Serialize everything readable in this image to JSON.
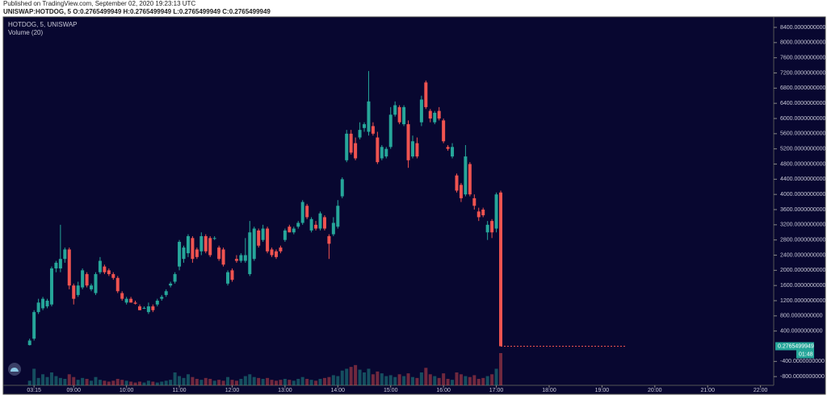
{
  "header": {
    "published": "Published on TradingView.com, September 02, 2020 19:23:13 UTC",
    "symbol_line": "UNISWAP:HOTDOG, 5  O:0.2765499949 H:0.2765499949 L:0.2765499949 C:0.2765499949"
  },
  "chart_data": {
    "type": "candlestick",
    "title": "HOTDOG, 5, UNISWAP",
    "volume_label": "Volume (20)",
    "up_color": "#26a69a",
    "down_color": "#ef5350",
    "open": [
      30,
      200,
      900,
      1000,
      1050,
      1100,
      2050,
      2050,
      2300,
      2550,
      1600,
      1350,
      1550,
      1900,
      1500,
      1400,
      1950,
      2100,
      2000,
      1900,
      1800,
      1400,
      1150,
      1250,
      1150,
      1050,
      1000,
      900,
      1050,
      1100,
      1250,
      1350,
      1600,
      1700,
      2100,
      2300,
      2450,
      2850,
      2550,
      2500,
      2900,
      2850,
      2850,
      2600,
      2550,
      1650,
      2000,
      2300,
      2250,
      2250,
      1900,
      2300,
      3050,
      2800,
      3100,
      2550,
      2500,
      2600,
      2800,
      3150,
      3000,
      3150,
      3250,
      3700,
      3050,
      3200,
      3100,
      3400,
      2900,
      2950,
      3150,
      3950,
      4900,
      5600,
      5350,
      5500,
      5750,
      5650,
      5800,
      5500,
      4950,
      5000,
      5250,
      6100,
      6300,
      5850,
      5850,
      5000,
      5350,
      5900,
      6950,
      6200,
      5900,
      6200,
      5950,
      5250,
      5000,
      4500,
      4250,
      4000,
      4800,
      3900,
      3550,
      3600,
      3000,
      3300,
      3100,
      4050
    ],
    "high": [
      200,
      950,
      1250,
      1300,
      1250,
      2100,
      2250,
      3200,
      2600,
      2600,
      1650,
      1700,
      2050,
      1950,
      1650,
      1950,
      2350,
      2150,
      2050,
      1950,
      1850,
      1450,
      1300,
      1300,
      1200,
      1100,
      1050,
      1150,
      1100,
      1250,
      1350,
      1500,
      1700,
      1950,
      2800,
      2650,
      2950,
      2900,
      2600,
      3000,
      2950,
      2900,
      2900,
      2650,
      2600,
      2000,
      2050,
      2400,
      2450,
      2850,
      3300,
      3150,
      3100,
      3200,
      3150,
      2600,
      2550,
      2650,
      3100,
      3200,
      3150,
      3300,
      3850,
      3750,
      3400,
      3300,
      3550,
      3450,
      2950,
      3400,
      3850,
      4450,
      5700,
      5700,
      5500,
      5900,
      5900,
      7250,
      5900,
      5650,
      5300,
      5250,
      6300,
      6450,
      6350,
      6350,
      5950,
      5550,
      5500,
      6600,
      7000,
      6250,
      6200,
      6300,
      6000,
      5300,
      5350,
      4550,
      4300,
      5300,
      4850,
      4000,
      3650,
      3650,
      3300,
      3350,
      4050,
      4100
    ],
    "low": [
      20,
      150,
      850,
      950,
      1000,
      1050,
      1950,
      1950,
      2200,
      1500,
      1100,
      1300,
      1500,
      1550,
      1450,
      1350,
      1900,
      1900,
      1850,
      1750,
      1400,
      1200,
      1100,
      1150,
      1100,
      950,
      980,
      850,
      900,
      1050,
      1200,
      1300,
      1550,
      1650,
      2000,
      2200,
      2350,
      2200,
      2300,
      2400,
      2450,
      2350,
      2800,
      2250,
      2100,
      1600,
      1700,
      2200,
      2200,
      2200,
      1850,
      2250,
      2600,
      2750,
      2450,
      2350,
      2300,
      2450,
      2750,
      3000,
      2950,
      3100,
      3200,
      3350,
      3000,
      3050,
      3050,
      3050,
      2300,
      2900,
      3100,
      3900,
      4850,
      5050,
      4900,
      5450,
      5650,
      5550,
      5550,
      4800,
      4900,
      4950,
      5200,
      6050,
      5850,
      5800,
      4700,
      4950,
      4950,
      5800,
      6250,
      5900,
      5850,
      5950,
      5350,
      5150,
      4950,
      4050,
      3800,
      3950,
      3950,
      3600,
      3300,
      3400,
      2800,
      2850,
      3000,
      0.2765499949
    ],
    "close": [
      150,
      900,
      1150,
      1250,
      1200,
      2050,
      2200,
      2300,
      2550,
      1600,
      1250,
      1600,
      2000,
      1600,
      1600,
      1900,
      2250,
      1950,
      1900,
      1800,
      1450,
      1250,
      1250,
      1150,
      1120,
      950,
      1010,
      1050,
      950,
      1200,
      1300,
      1450,
      1650,
      1900,
      2750,
      2600,
      2900,
      2300,
      2350,
      2900,
      2500,
      2400,
      2850,
      2300,
      2150,
      1950,
      1750,
      2250,
      2400,
      2400,
      3000,
      3100,
      2650,
      3100,
      2500,
      2400,
      2350,
      2500,
      3050,
      3000,
      3100,
      3250,
      3800,
      3400,
      3350,
      3100,
      3500,
      3100,
      2700,
      3250,
      3700,
      4400,
      5600,
      5100,
      4950,
      5700,
      5850,
      6450,
      5600,
      4850,
      5250,
      5200,
      6100,
      6350,
      5900,
      6300,
      4900,
      5400,
      5000,
      6500,
      6300,
      6000,
      6150,
      6000,
      5400,
      5200,
      5250,
      4100,
      3900,
      5000,
      4000,
      3700,
      3400,
      3450,
      3200,
      3000,
      4000,
      0.2765499949
    ],
    "volume": [
      5,
      18,
      8,
      12,
      9,
      14,
      10,
      8,
      7,
      12,
      9,
      6,
      8,
      7,
      5,
      9,
      6,
      5,
      4,
      5,
      7,
      6,
      5,
      4,
      3,
      4,
      3,
      5,
      4,
      3,
      4,
      5,
      6,
      14,
      10,
      8,
      12,
      9,
      7,
      6,
      8,
      7,
      5,
      6,
      5,
      9,
      6,
      5,
      7,
      10,
      12,
      9,
      8,
      7,
      8,
      6,
      5,
      6,
      7,
      6,
      5,
      7,
      9,
      7,
      6,
      5,
      7,
      8,
      9,
      11,
      10,
      16,
      18,
      20,
      22,
      17,
      14,
      18,
      12,
      15,
      13,
      10,
      11,
      9,
      12,
      10,
      13,
      9,
      8,
      14,
      19,
      12,
      10,
      8,
      13,
      7,
      6,
      14,
      12,
      10,
      9,
      11,
      7,
      8,
      10,
      12,
      18,
      35
    ],
    "ylim": [
      -1030,
      8655
    ],
    "xlim": [
      -6,
      169
    ],
    "yticks": [
      {
        "value": 8400,
        "label": "8400.0000000000"
      },
      {
        "value": 8000,
        "label": "8000.0000000000"
      },
      {
        "value": 7600,
        "label": "7600.0000000000"
      },
      {
        "value": 7200,
        "label": "7200.0000000000"
      },
      {
        "value": 6800,
        "label": "6800.0000000000"
      },
      {
        "value": 6400,
        "label": "6400.0000000000"
      },
      {
        "value": 6000,
        "label": "6000.0000000000"
      },
      {
        "value": 5600,
        "label": "5600.0000000000"
      },
      {
        "value": 5200,
        "label": "5200.0000000000"
      },
      {
        "value": 4800,
        "label": "4800.0000000000"
      },
      {
        "value": 4400,
        "label": "4400.0000000000"
      },
      {
        "value": 4000,
        "label": "4000.0000000000"
      },
      {
        "value": 3600,
        "label": "3600.0000000000"
      },
      {
        "value": 3200,
        "label": "3200.0000000000"
      },
      {
        "value": 2800,
        "label": "2800.0000000000"
      },
      {
        "value": 2400,
        "label": "2400.0000000000"
      },
      {
        "value": 2000,
        "label": "2000.0000000000"
      },
      {
        "value": 1600,
        "label": "1600.0000000000"
      },
      {
        "value": 1200,
        "label": "1200.0000000000"
      },
      {
        "value": 800,
        "label": "800.0000000000"
      },
      {
        "value": 400,
        "label": "400.0000000000"
      },
      {
        "value": -400,
        "label": "-400.0000000000"
      },
      {
        "value": -800,
        "label": "-800.0000000000"
      }
    ],
    "xticks": [
      {
        "value": 1,
        "label": "03:15"
      },
      {
        "value": 10,
        "label": "09:00"
      },
      {
        "value": 22,
        "label": "10:00"
      },
      {
        "value": 34,
        "label": "11:00"
      },
      {
        "value": 46,
        "label": "12:00"
      },
      {
        "value": 58,
        "label": "13:00"
      },
      {
        "value": 70,
        "label": "14:00"
      },
      {
        "value": 82,
        "label": "15:00"
      },
      {
        "value": 94,
        "label": "16:00"
      },
      {
        "value": 106,
        "label": "17:00"
      },
      {
        "value": 118,
        "label": "18:00"
      },
      {
        "value": 130,
        "label": "19:00"
      },
      {
        "value": 142,
        "label": "20:00"
      },
      {
        "value": 154,
        "label": "21:00"
      },
      {
        "value": 166,
        "label": "22:00"
      }
    ],
    "last_price": {
      "value": 0.2765499949,
      "label": "0.2765499949"
    },
    "countdown": "01:48"
  }
}
